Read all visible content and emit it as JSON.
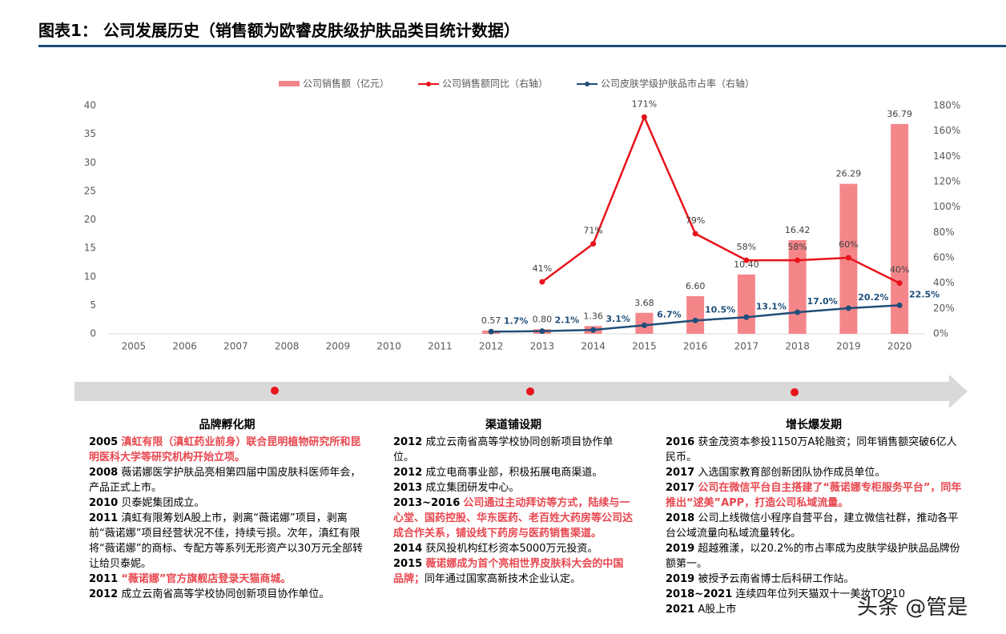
{
  "header": {
    "title": "图表1： 公司发展历史（销售额为欧睿皮肤级护肤品类目统计数据）"
  },
  "chart_data": {
    "type": "bar",
    "categories": [
      "2005",
      "2006",
      "2007",
      "2008",
      "2009",
      "2010",
      "2011",
      "2012",
      "2013",
      "2014",
      "2015",
      "2016",
      "2017",
      "2018",
      "2019",
      "2020"
    ],
    "series": [
      {
        "name": "公司销售额（亿元）",
        "type": "bar",
        "color": "#f4868a",
        "values": [
          null,
          null,
          null,
          null,
          null,
          null,
          null,
          0.57,
          0.8,
          1.36,
          3.68,
          6.6,
          10.4,
          16.42,
          26.29,
          36.79
        ],
        "value_labels": [
          null,
          null,
          null,
          null,
          null,
          null,
          null,
          "0.57",
          "0.80",
          "1.36",
          "3.68",
          "6.60",
          "10.40",
          "16.42",
          "26.29",
          "36.79"
        ]
      },
      {
        "name": "公司销售额同比（右轴）",
        "type": "line",
        "axis": "y2",
        "color": "#e8141b",
        "values": [
          null,
          null,
          null,
          null,
          null,
          null,
          null,
          null,
          41,
          71,
          171,
          79,
          58,
          58,
          60,
          40
        ],
        "value_labels": [
          null,
          null,
          null,
          null,
          null,
          null,
          null,
          null,
          "41%",
          "71%",
          "171%",
          "79%",
          "58%",
          "58%",
          "60%",
          "40%"
        ]
      },
      {
        "name": "公司皮肤学级护肤品市占率（右轴）",
        "type": "line",
        "axis": "y2",
        "color": "#1f4e79",
        "values": [
          null,
          null,
          null,
          null,
          null,
          null,
          null,
          1.7,
          2.1,
          3.1,
          6.7,
          10.5,
          13.1,
          17.0,
          20.2,
          22.5
        ],
        "value_labels": [
          null,
          null,
          null,
          null,
          null,
          null,
          null,
          "1.7%",
          "2.1%",
          "3.1%",
          "6.7%",
          "10.5%",
          "13.1%",
          "17.0%",
          "20.2%",
          "22.5%"
        ]
      }
    ],
    "ylim": [
      0,
      40
    ],
    "yticks": [
      0,
      5,
      10,
      15,
      20,
      25,
      30,
      35,
      40
    ],
    "y2lim": [
      0,
      180
    ],
    "y2ticks": [
      {
        "value": 0,
        "label": "0%"
      },
      {
        "value": 20,
        "label": "20%"
      },
      {
        "value": 40,
        "label": "40%"
      },
      {
        "value": 60,
        "label": "60%"
      },
      {
        "value": 80,
        "label": "80%"
      },
      {
        "value": 100,
        "label": "100%"
      },
      {
        "value": 120,
        "label": "120%"
      },
      {
        "value": 140,
        "label": "140%"
      },
      {
        "value": 160,
        "label": "160%"
      },
      {
        "value": 180,
        "label": "180%"
      }
    ],
    "legend": "top"
  },
  "timeline": {
    "sections": [
      {
        "title": "品牌孵化期",
        "entries": [
          {
            "year": "2005",
            "text": "滇虹有限（滇虹药业前身）联合昆明植物研究所和昆明医科大学等研究机构开始立项。",
            "highlight": true
          },
          {
            "year": "2008",
            "text": "薇诺娜医学护肤品亮相第四届中国皮肤科医师年会，产品正式上市。"
          },
          {
            "year": "2010",
            "text": "贝泰妮集团成立。"
          },
          {
            "year": "2011",
            "text": "滇虹有限筹划A股上市，剥离“薇诺娜”项目，剥离前“薇诺娜”项目经营状况不佳，持续亏损。次年，滇红有限将“薇诺娜”的商标、专配方等系列无形资产以30万元全部转让给贝泰妮。"
          },
          {
            "year": "2011",
            "text": "“薇诺娜”官方旗舰店登录天猫商城。",
            "highlight": true
          },
          {
            "year": "2012",
            "text": "成立云南省高等学校协同创新项目协作单位。"
          }
        ]
      },
      {
        "title": "渠道铺设期",
        "entries": [
          {
            "year": "2012",
            "text": "成立云南省高等学校协同创新项目协作单位。"
          },
          {
            "year": "2012",
            "text": "成立电商事业部，积极拓展电商渠道。"
          },
          {
            "year": "2013",
            "text": "成立集团研发中心。"
          },
          {
            "year": "2013~2016",
            "text": "公司通过主动拜访等方式，陆续与一心堂、国药控股、华东医药、老百姓大药房等公司达成合作关系，铺设线下药房与医药销售渠道。",
            "highlight": true
          },
          {
            "year": "2014",
            "text": "获风投机构红杉资本5000万元投资。"
          },
          {
            "year": "2015",
            "text": "薇诺娜成为首个亮相世界皮肤科大会的中国品牌；",
            "highlight": true,
            "extra": "同年通过国家高新技术企业认定。"
          }
        ]
      },
      {
        "title": "增长爆发期",
        "entries": [
          {
            "year": "2016",
            "text": "获金茂资本参投1150万A轮融资；同年销售额突破6亿人民币。"
          },
          {
            "year": "2017",
            "text": "入选国家教育部创新团队协作成员单位。"
          },
          {
            "year": "2017",
            "text": "公司在微信平台自主搭建了“薇诺娜专柜服务平台”，同年推出“逑美”APP，打造公司私域流量。",
            "highlight": true
          },
          {
            "year": "2018",
            "text": "公司上线微信小程序自营平台，建立微信社群，推动各平台公域流量向私域流量转化。"
          },
          {
            "year": "2019",
            "text": "超越雅漾，以20.2%的市占率成为皮肤学级护肤品品牌份额第一。"
          },
          {
            "year": "2019",
            "text": "被授予云南省博士后科研工作站。"
          },
          {
            "year": "2018~2021",
            "text": "连续四年位列天猫双十一美妆TOP10"
          },
          {
            "year": "2021",
            "text": "A股上市"
          }
        ]
      }
    ]
  },
  "watermark": "头条 @管是"
}
